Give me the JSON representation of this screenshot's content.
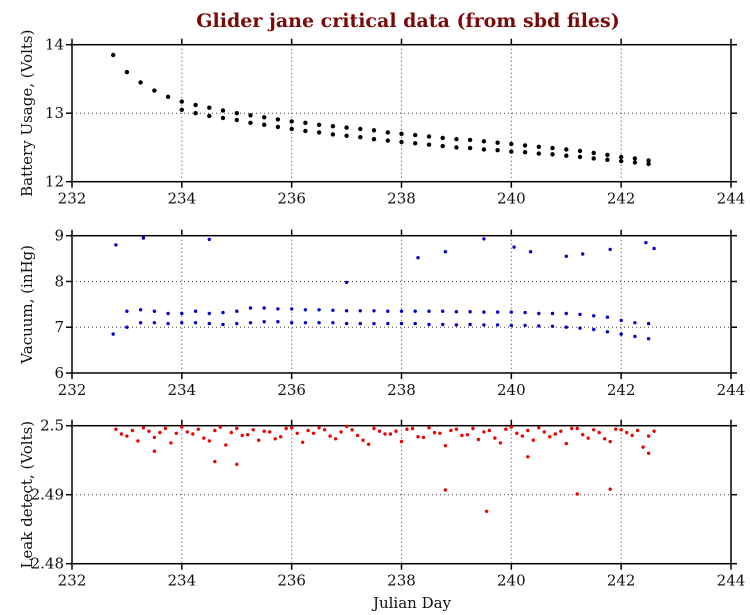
{
  "chart_data": [
    {
      "type": "scatter",
      "title": "Glider jane critical data (from sbd files)",
      "ylabel": "Battery Usage, (Volts)",
      "xlabel": "",
      "xlim": [
        232,
        244
      ],
      "ylim": [
        12,
        14
      ],
      "xticks": [
        "232",
        "234",
        "236",
        "238",
        "240",
        "242",
        "244"
      ],
      "yticks": [
        "12",
        "13",
        "14"
      ],
      "ytick_values": [
        12,
        13,
        14
      ],
      "color": "#000000",
      "grid": true,
      "series": [
        {
          "name": "upper",
          "x0": 232.75,
          "step": 0.25,
          "values": [
            13.85,
            13.6,
            13.45,
            13.33,
            13.24,
            13.17,
            13.12,
            13.08,
            13.04,
            13.0,
            12.97,
            12.94,
            12.91,
            12.88,
            12.86,
            12.83,
            12.81,
            12.79,
            12.77,
            12.75,
            12.72,
            12.7,
            12.68,
            12.66,
            12.64,
            12.62,
            12.61,
            12.59,
            12.57,
            12.55,
            12.53,
            12.51,
            12.49,
            12.47,
            12.45,
            12.42,
            12.39,
            12.36,
            12.34,
            12.31
          ]
        },
        {
          "name": "lower",
          "x0": 234.0,
          "step": 0.25,
          "values": [
            13.05,
            13.0,
            12.96,
            12.93,
            12.9,
            12.86,
            12.83,
            12.8,
            12.77,
            12.74,
            12.72,
            12.69,
            12.67,
            12.65,
            12.62,
            12.6,
            12.58,
            12.56,
            12.54,
            12.52,
            12.5,
            12.49,
            12.47,
            12.46,
            12.44,
            12.43,
            12.41,
            12.4,
            12.38,
            12.36,
            12.34,
            12.32,
            12.3,
            12.28,
            12.26
          ]
        }
      ]
    },
    {
      "type": "scatter",
      "ylabel": "Vacuum, (inHg)",
      "xlabel": "",
      "xlim": [
        232,
        244
      ],
      "ylim": [
        6,
        9
      ],
      "xticks": [
        "232",
        "234",
        "236",
        "238",
        "240",
        "242",
        "244"
      ],
      "yticks": [
        "6",
        "7",
        "8",
        "9"
      ],
      "ytick_values": [
        6,
        7,
        8,
        9
      ],
      "color": "#0000cc",
      "grid": true,
      "series": [
        {
          "name": "upper",
          "x0": 233.0,
          "step": 0.25,
          "values": [
            7.35,
            7.38,
            7.35,
            7.3,
            7.3,
            7.35,
            7.3,
            7.32,
            7.35,
            7.42,
            7.42,
            7.4,
            7.4,
            7.38,
            7.38,
            7.37,
            7.36,
            7.36,
            7.36,
            7.35,
            7.35,
            7.35,
            7.35,
            7.35,
            7.34,
            7.34,
            7.33,
            7.33,
            7.33,
            7.32,
            7.3,
            7.3,
            7.3,
            7.28,
            7.25,
            7.22,
            7.15,
            7.1,
            7.08
          ]
        },
        {
          "name": "lower",
          "x0": 232.75,
          "step": 0.25,
          "values": [
            6.85,
            7.0,
            7.1,
            7.1,
            7.08,
            7.1,
            7.1,
            7.08,
            7.06,
            7.08,
            7.1,
            7.12,
            7.12,
            7.1,
            7.1,
            7.1,
            7.1,
            7.08,
            7.08,
            7.08,
            7.08,
            7.08,
            7.08,
            7.06,
            7.06,
            7.05,
            7.06,
            7.05,
            7.05,
            7.04,
            7.04,
            7.03,
            7.02,
            7.0,
            6.98,
            6.95,
            6.9,
            6.85,
            6.8,
            6.75
          ]
        },
        {
          "name": "outliers",
          "x": [
            232.8,
            233.3,
            234.5,
            237.0,
            238.3,
            238.8,
            239.5,
            240.05,
            240.35,
            241.0,
            241.3,
            241.8,
            242.45,
            242.6
          ],
          "y": [
            8.8,
            8.95,
            8.92,
            7.98,
            8.52,
            8.65,
            8.93,
            8.75,
            8.65,
            8.55,
            8.6,
            8.7,
            8.85,
            8.72
          ]
        }
      ]
    },
    {
      "type": "scatter",
      "ylabel": "Leak detect, (Volts)",
      "xlabel": "Julian Day",
      "xlim": [
        232,
        244
      ],
      "ylim": [
        2.48,
        2.5
      ],
      "xticks": [
        "232",
        "234",
        "236",
        "238",
        "240",
        "242",
        "244"
      ],
      "yticks": [
        "2.48",
        "2.49",
        "2.5"
      ],
      "ytick_values": [
        2.48,
        2.49,
        2.5
      ],
      "color": "#ee0000",
      "grid": true,
      "series": [
        {
          "name": "main",
          "x0": 232.8,
          "step": 0.2,
          "values": [
            2.4995,
            2.4985,
            2.4978,
            2.4992,
            2.499,
            2.4975,
            2.4998,
            2.4988,
            2.4982,
            2.4993,
            2.4972,
            2.4996,
            2.4987,
            2.4979,
            2.4991,
            2.4984,
            2.4997,
            2.4976,
            2.4989,
            2.4994,
            2.4981,
            2.4999,
            2.4986,
            2.4973,
            2.4992,
            2.4988,
            2.4977,
            2.4996,
            2.4983,
            2.499,
            2.4971,
            2.4995,
            2.4987,
            2.498,
            2.4993,
            2.4975,
            2.4998,
            2.4985,
            2.4979,
            2.4991,
            2.4988,
            2.4974,
            2.4996,
            2.4982,
            2.499,
            2.4977,
            2.4994,
            2.4986,
            2.4969,
            2.4992
          ]
        },
        {
          "name": "band2",
          "x0": 232.9,
          "step": 0.2,
          "values": [
            2.4988,
            2.4993,
            2.4997,
            2.4983,
            2.4996,
            2.4989,
            2.4991,
            2.4995,
            2.4978,
            2.4998,
            2.499,
            2.4986,
            2.4994,
            2.4992,
            2.4981,
            2.4996,
            2.4989,
            2.4993,
            2.4997,
            2.4985,
            2.4991,
            2.4994,
            2.4979,
            2.4996,
            2.4988,
            2.4992,
            2.4995,
            2.4984,
            2.4997,
            2.4989,
            2.4993,
            2.4986,
            2.4996,
            2.4991,
            2.4982,
            2.4995,
            2.4989,
            2.4993,
            2.4997,
            2.4984,
            2.4992,
            2.4996,
            2.4987,
            2.4994,
            2.4981,
            2.4995,
            2.499,
            2.4993,
            2.4985
          ]
        },
        {
          "name": "outliers",
          "x": [
            234.6,
            235.0,
            238.8,
            239.55,
            241.2,
            241.8,
            240.3,
            233.5,
            242.5
          ],
          "y": [
            2.4948,
            2.4944,
            2.4907,
            2.4876,
            2.4901,
            2.4908,
            2.4955,
            2.4963,
            2.496
          ]
        }
      ]
    }
  ]
}
